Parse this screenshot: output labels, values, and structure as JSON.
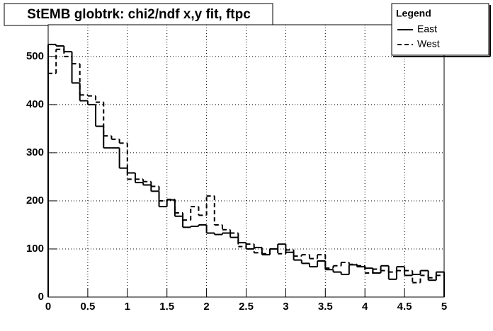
{
  "chart_data": {
    "type": "histogram",
    "title": "StEMB globtrk: chi2/ndf x,y fit, ftpc",
    "legend_title": "Legend",
    "legend_position": "top-right",
    "grid": true,
    "bins": [
      0,
      0.1,
      0.2,
      0.3,
      0.4,
      0.5,
      0.6,
      0.7,
      0.8,
      0.9,
      1,
      1.1,
      1.2,
      1.3,
      1.4,
      1.5,
      1.6,
      1.7,
      1.8,
      1.9,
      2,
      2.1,
      2.2,
      2.3,
      2.4,
      2.5,
      2.6,
      2.7,
      2.8,
      2.9,
      3,
      3.1,
      3.2,
      3.3,
      3.4,
      3.5,
      3.6,
      3.7,
      3.8,
      3.9,
      4,
      4.1,
      4.2,
      4.3,
      4.4,
      4.5,
      4.6,
      4.7,
      4.8,
      4.9,
      5
    ],
    "series": [
      {
        "name": "East",
        "color": "#000000",
        "dash": "solid",
        "values": [
          525,
          522,
          510,
          445,
          408,
          400,
          355,
          310,
          310,
          268,
          258,
          238,
          233,
          220,
          188,
          202,
          168,
          145,
          147,
          150,
          133,
          130,
          133,
          124,
          113,
          100,
          103,
          88,
          100,
          110,
          93,
          77,
          70,
          63,
          75,
          57,
          52,
          47,
          67,
          63,
          60,
          50,
          65,
          37,
          63,
          45,
          47,
          55,
          35,
          52
        ]
      },
      {
        "name": "West",
        "color": "#000000",
        "dash": "dashed",
        "values": [
          465,
          515,
          500,
          485,
          420,
          418,
          405,
          335,
          328,
          320,
          245,
          245,
          240,
          230,
          200,
          203,
          175,
          160,
          188,
          170,
          210,
          150,
          140,
          133,
          105,
          110,
          92,
          90,
          100,
          90,
          98,
          85,
          88,
          80,
          88,
          60,
          65,
          72,
          68,
          65,
          50,
          58,
          55,
          52,
          55,
          55,
          30,
          45,
          40,
          45
        ]
      }
    ],
    "xlim": [
      0,
      5
    ],
    "xticks": [
      0,
      0.5,
      1,
      1.5,
      2,
      2.5,
      3,
      3.5,
      4,
      4.5,
      5
    ],
    "ylim": [
      0,
      566
    ],
    "yticks": [
      0,
      100,
      200,
      300,
      400,
      500
    ]
  }
}
